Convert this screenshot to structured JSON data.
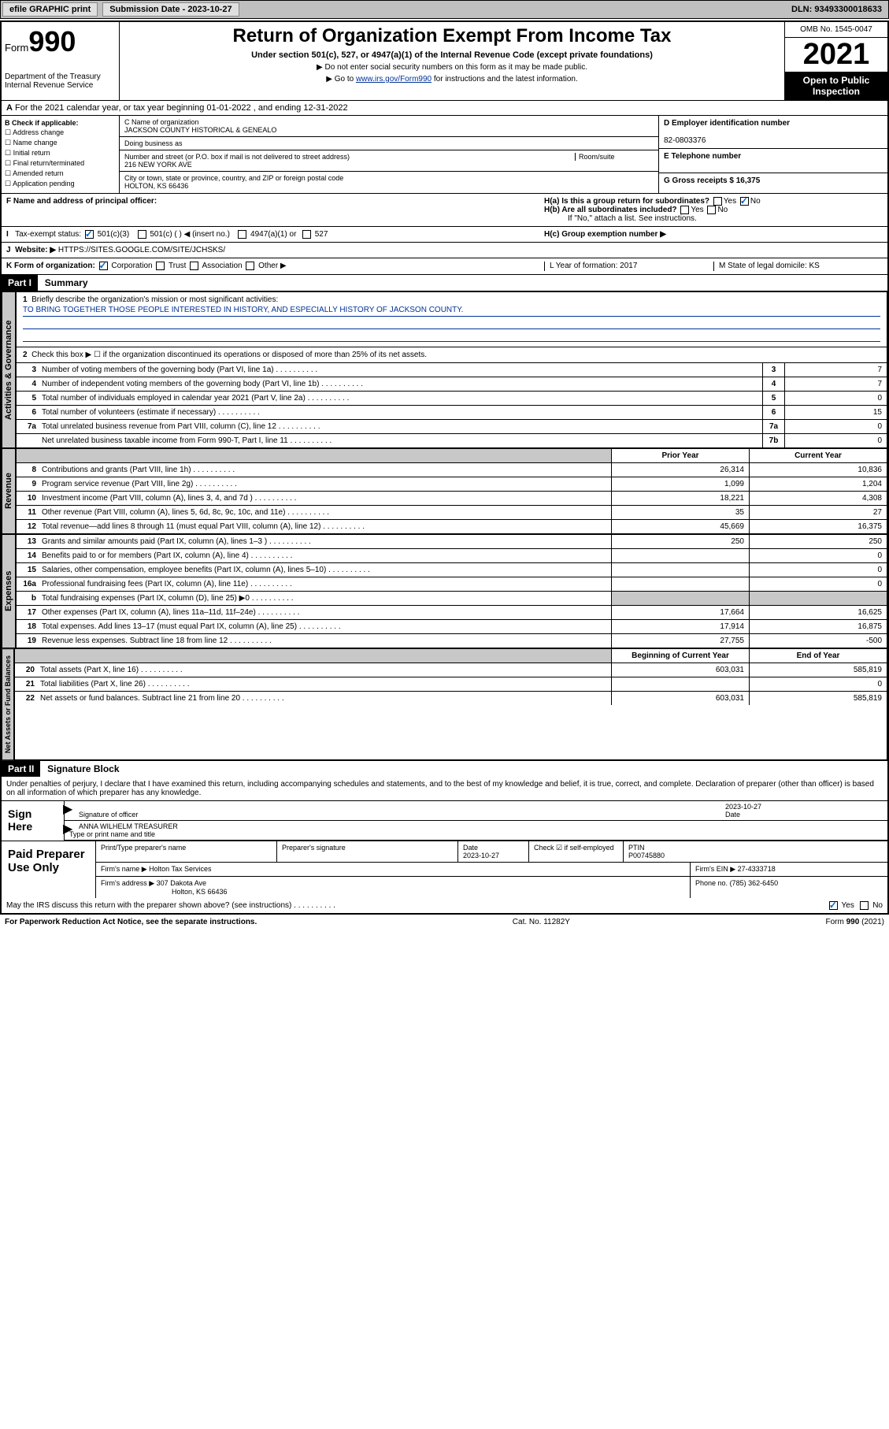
{
  "topbar": {
    "efile_label": "efile GRAPHIC print",
    "submission_label": "Submission Date - 2023-10-27",
    "dln_label": "DLN: 93493300018633"
  },
  "header": {
    "form_word": "Form",
    "form_num": "990",
    "dept": "Department of the Treasury\nInternal Revenue Service",
    "title": "Return of Organization Exempt From Income Tax",
    "subtitle": "Under section 501(c), 527, or 4947(a)(1) of the Internal Revenue Code (except private foundations)",
    "note1": "▶ Do not enter social security numbers on this form as it may be made public.",
    "note2_pre": "▶ Go to ",
    "note2_link": "www.irs.gov/Form990",
    "note2_post": " for instructions and the latest information.",
    "omb": "OMB No. 1545-0047",
    "year": "2021",
    "inspect": "Open to Public Inspection"
  },
  "row_a": "For the 2021 calendar year, or tax year beginning 01-01-2022   , and ending 12-31-2022",
  "col_b": {
    "title": "B Check if applicable:",
    "opts": [
      "Address change",
      "Name change",
      "Initial return",
      "Final return/terminated",
      "Amended return",
      "Application pending"
    ]
  },
  "col_c": {
    "name_lbl": "C Name of organization",
    "name": "JACKSON COUNTY HISTORICAL & GENEALO",
    "dba_lbl": "Doing business as",
    "addr_lbl": "Number and street (or P.O. box if mail is not delivered to street address)",
    "room_lbl": "Room/suite",
    "addr": "216 NEW YORK AVE",
    "city_lbl": "City or town, state or province, country, and ZIP or foreign postal code",
    "city": "HOLTON, KS  66436"
  },
  "col_d": {
    "ein_lbl": "D Employer identification number",
    "ein": "82-0803376",
    "tel_lbl": "E Telephone number",
    "gross_lbl": "G Gross receipts $ 16,375"
  },
  "row_f": {
    "f_lbl": "F  Name and address of principal officer:",
    "ha": "H(a)  Is this a group return for subordinates?",
    "hb": "H(b)  Are all subordinates included?",
    "hb_note": "If \"No,\" attach a list. See instructions.",
    "hc": "H(c)  Group exemption number ▶",
    "yes": "Yes",
    "no": "No"
  },
  "row_i": {
    "lbl": "Tax-exempt status:",
    "o1": "501(c)(3)",
    "o2": "501(c) (  ) ◀ (insert no.)",
    "o3": "4947(a)(1) or",
    "o4": "527"
  },
  "row_j": {
    "lbl": "Website: ▶",
    "val": "HTTPS://SITES.GOOGLE.COM/SITE/JCHSKS/"
  },
  "row_k": {
    "lbl": "K Form of organization:",
    "o1": "Corporation",
    "o2": "Trust",
    "o3": "Association",
    "o4": "Other ▶",
    "l": "L Year of formation: 2017",
    "m": "M State of legal domicile: KS"
  },
  "part1": {
    "hdr": "Part I",
    "title": "Summary",
    "line1_lbl": "Briefly describe the organization's mission or most significant activities:",
    "line1_val": "TO BRING TOGETHER THOSE PEOPLE INTERESTED IN HISTORY, AND ESPECIALLY HISTORY OF JACKSON COUNTY.",
    "line2": "Check this box ▶ ☐  if the organization discontinued its operations or disposed of more than 25% of its net assets.",
    "gov_tab": "Activities & Governance",
    "rev_tab": "Revenue",
    "exp_tab": "Expenses",
    "net_tab": "Net Assets or Fund Balances",
    "prior": "Prior Year",
    "current": "Current Year",
    "beg": "Beginning of Current Year",
    "end": "End of Year",
    "lines_gov": [
      {
        "n": "3",
        "t": "Number of voting members of the governing body (Part VI, line 1a)",
        "b": "3",
        "v": "7"
      },
      {
        "n": "4",
        "t": "Number of independent voting members of the governing body (Part VI, line 1b)",
        "b": "4",
        "v": "7"
      },
      {
        "n": "5",
        "t": "Total number of individuals employed in calendar year 2021 (Part V, line 2a)",
        "b": "5",
        "v": "0"
      },
      {
        "n": "6",
        "t": "Total number of volunteers (estimate if necessary)",
        "b": "6",
        "v": "15"
      },
      {
        "n": "7a",
        "t": "Total unrelated business revenue from Part VIII, column (C), line 12",
        "b": "7a",
        "v": "0"
      },
      {
        "n": "",
        "t": "Net unrelated business taxable income from Form 990-T, Part I, line 11",
        "b": "7b",
        "v": "0"
      }
    ],
    "lines_rev": [
      {
        "n": "8",
        "t": "Contributions and grants (Part VIII, line 1h)",
        "p": "26,314",
        "c": "10,836"
      },
      {
        "n": "9",
        "t": "Program service revenue (Part VIII, line 2g)",
        "p": "1,099",
        "c": "1,204"
      },
      {
        "n": "10",
        "t": "Investment income (Part VIII, column (A), lines 3, 4, and 7d )",
        "p": "18,221",
        "c": "4,308"
      },
      {
        "n": "11",
        "t": "Other revenue (Part VIII, column (A), lines 5, 6d, 8c, 9c, 10c, and 11e)",
        "p": "35",
        "c": "27"
      },
      {
        "n": "12",
        "t": "Total revenue—add lines 8 through 11 (must equal Part VIII, column (A), line 12)",
        "p": "45,669",
        "c": "16,375"
      }
    ],
    "lines_exp": [
      {
        "n": "13",
        "t": "Grants and similar amounts paid (Part IX, column (A), lines 1–3 )",
        "p": "250",
        "c": "250"
      },
      {
        "n": "14",
        "t": "Benefits paid to or for members (Part IX, column (A), line 4)",
        "p": "",
        "c": "0"
      },
      {
        "n": "15",
        "t": "Salaries, other compensation, employee benefits (Part IX, column (A), lines 5–10)",
        "p": "",
        "c": "0"
      },
      {
        "n": "16a",
        "t": "Professional fundraising fees (Part IX, column (A), line 11e)",
        "p": "",
        "c": "0"
      },
      {
        "n": "b",
        "t": "Total fundraising expenses (Part IX, column (D), line 25) ▶0",
        "p": "",
        "c": "",
        "shade": true
      },
      {
        "n": "17",
        "t": "Other expenses (Part IX, column (A), lines 11a–11d, 11f–24e)",
        "p": "17,664",
        "c": "16,625"
      },
      {
        "n": "18",
        "t": "Total expenses. Add lines 13–17 (must equal Part IX, column (A), line 25)",
        "p": "17,914",
        "c": "16,875"
      },
      {
        "n": "19",
        "t": "Revenue less expenses. Subtract line 18 from line 12",
        "p": "27,755",
        "c": "-500"
      }
    ],
    "lines_net": [
      {
        "n": "20",
        "t": "Total assets (Part X, line 16)",
        "p": "603,031",
        "c": "585,819"
      },
      {
        "n": "21",
        "t": "Total liabilities (Part X, line 26)",
        "p": "",
        "c": "0"
      },
      {
        "n": "22",
        "t": "Net assets or fund balances. Subtract line 21 from line 20",
        "p": "603,031",
        "c": "585,819"
      }
    ]
  },
  "part2": {
    "hdr": "Part II",
    "title": "Signature Block",
    "penalty": "Under penalties of perjury, I declare that I have examined this return, including accompanying schedules and statements, and to the best of my knowledge and belief, it is true, correct, and complete. Declaration of preparer (other than officer) is based on all information of which preparer has any knowledge.",
    "sign_here": "Sign Here",
    "sig_officer": "Signature of officer",
    "date_lbl": "Date",
    "date_val": "2023-10-27",
    "name_title": "ANNA WILHELM  TREASURER",
    "name_title_lbl": "Type or print name and title",
    "paid": "Paid Preparer Use Only",
    "prep_name_lbl": "Print/Type preparer's name",
    "prep_sig_lbl": "Preparer's signature",
    "prep_date_lbl": "Date",
    "prep_date": "2023-10-27",
    "prep_check": "Check ☑ if self-employed",
    "ptin_lbl": "PTIN",
    "ptin": "P00745880",
    "firm_name_lbl": "Firm's name    ▶",
    "firm_name": "Holton Tax Services",
    "firm_ein_lbl": "Firm's EIN ▶",
    "firm_ein": "27-4333718",
    "firm_addr_lbl": "Firm's address ▶",
    "firm_addr": "307 Dakota Ave",
    "firm_city": "Holton, KS  66436",
    "phone_lbl": "Phone no.",
    "phone": "(785) 362-6450",
    "discuss": "May the IRS discuss this return with the preparer shown above? (see instructions)"
  },
  "footer": {
    "left": "For Paperwork Reduction Act Notice, see the separate instructions.",
    "mid": "Cat. No. 11282Y",
    "right": "Form 990 (2021)"
  }
}
